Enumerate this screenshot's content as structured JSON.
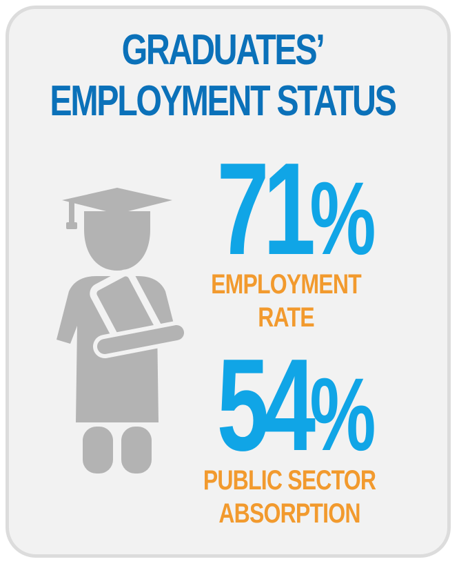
{
  "title": {
    "line1": "GRADUATES’",
    "line2": "EMPLOYMENT STATUS"
  },
  "stats": [
    {
      "number": "71",
      "unit": "%",
      "label_line1": "EMPLOYMENT",
      "label_line2": "RATE"
    },
    {
      "number": "54",
      "unit": "%",
      "label_line1": "PUBLIC SECTOR",
      "label_line2": "ABSORPTION"
    }
  ],
  "colors": {
    "title": "#0b71b9",
    "value": "#10a5e6",
    "label": "#f29a2e",
    "icon": "#b3b3b3",
    "card": "#f2f2f2",
    "border": "#dcdcdc"
  },
  "icons": {
    "figure": "graduate-icon"
  }
}
